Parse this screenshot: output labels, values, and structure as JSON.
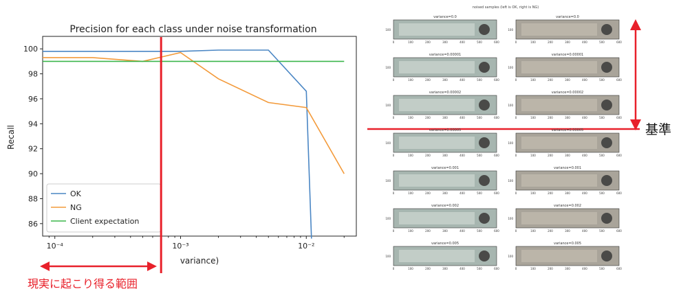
{
  "colors": {
    "ok": "#4a86c4",
    "ng": "#f39a3a",
    "client": "#3ab54a",
    "annotation": "#e8202a",
    "axis": "#222222"
  },
  "chart_data": {
    "type": "line",
    "title": "Precision for each class under noise transformation",
    "xlabel": "variance)",
    "ylabel": "Recall",
    "x_scale": "log",
    "xlim": [
      8e-05,
      0.025
    ],
    "ylim": [
      85,
      101
    ],
    "grid": false,
    "legend_position": "lower-left",
    "yticks": [
      100,
      98,
      96,
      94,
      92,
      90,
      88,
      86
    ],
    "xticks": [
      {
        "value": 0.0001,
        "label": "10⁻⁴"
      },
      {
        "value": 0.001,
        "label": "10⁻³"
      },
      {
        "value": 0.01,
        "label": "10⁻²"
      }
    ],
    "series": [
      {
        "name": "OK",
        "color_key": "ok",
        "x": [
          8e-05,
          0.00015,
          0.0003,
          0.0007,
          0.001,
          0.002,
          0.005,
          0.01,
          0.011
        ],
        "y": [
          99.8,
          99.8,
          99.8,
          99.8,
          99.8,
          99.9,
          99.9,
          96.6,
          84.8
        ]
      },
      {
        "name": "NG",
        "color_key": "ng",
        "x": [
          8e-05,
          0.0002,
          0.0005,
          0.001,
          0.002,
          0.005,
          0.01,
          0.02
        ],
        "y": [
          99.3,
          99.3,
          99.0,
          99.7,
          97.6,
          95.7,
          95.3,
          90.0
        ]
      },
      {
        "name": "Client expectation",
        "color_key": "client",
        "x": [
          8e-05,
          0.02
        ],
        "y": [
          99.0,
          99.0
        ]
      }
    ]
  },
  "annotations": {
    "range_label": "現実に起こり得る範囲",
    "base_label": "基準",
    "threshold_variance": 0.0007
  },
  "samples": {
    "title": "noised samples (left is OK, right is NG)",
    "rows": [
      {
        "caption": "variance=0.0"
      },
      {
        "caption": "variance=0.00001"
      },
      {
        "caption": "variance=0.00002"
      },
      {
        "caption": "variance=0.00005"
      },
      {
        "caption": "variance=0.001"
      },
      {
        "caption": "variance=0.002"
      },
      {
        "caption": "variance=0.005"
      }
    ],
    "y_tick": "100",
    "x_ticks": [
      "0",
      "100",
      "200",
      "300",
      "400",
      "500",
      "600"
    ]
  }
}
